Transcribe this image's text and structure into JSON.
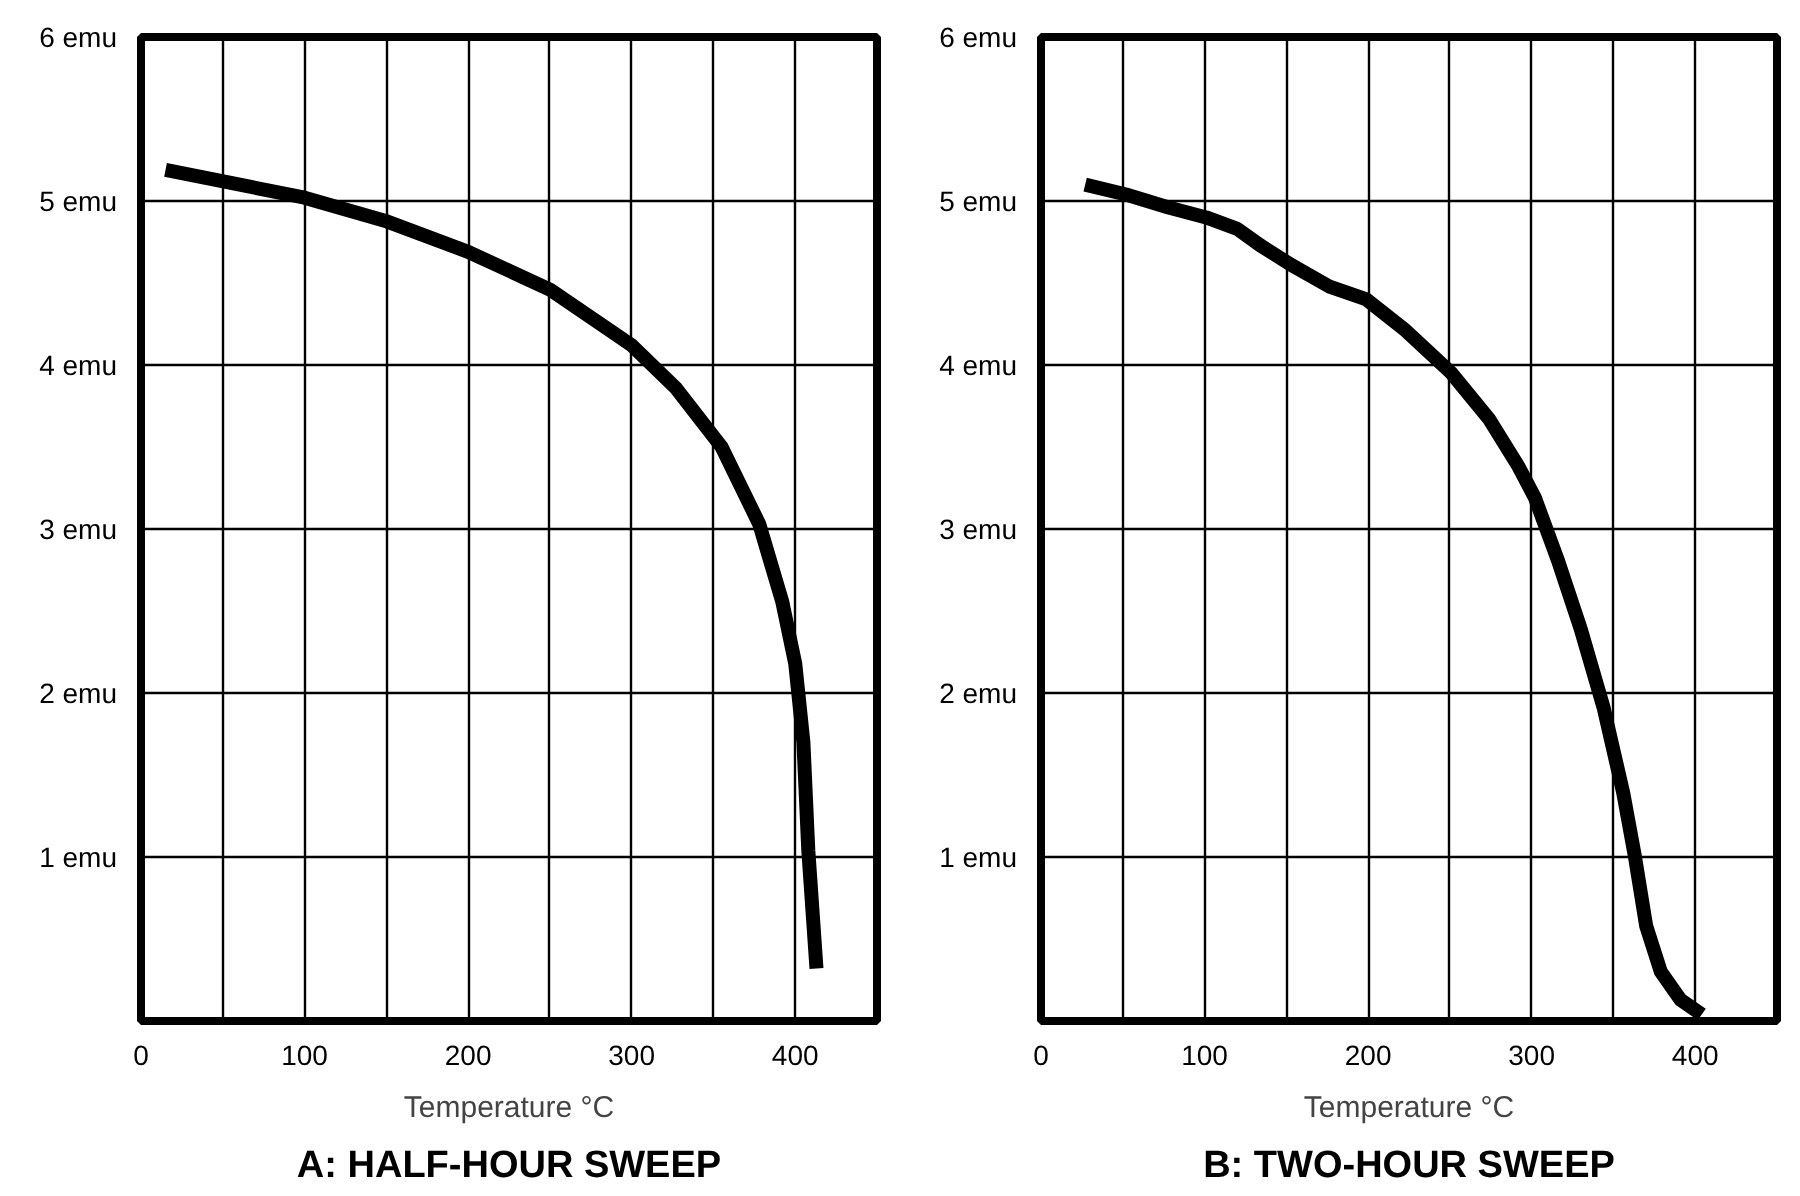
{
  "chart_data": [
    {
      "type": "line",
      "title": "A: HALF-HOUR SWEEP",
      "xlabel": "Temperature °C",
      "xlim": [
        0,
        450
      ],
      "ylim": [
        0,
        6
      ],
      "xticks": [
        0,
        {
          "value": 50,
          "label": null
        },
        100,
        {
          "value": 150,
          "label": null
        },
        200,
        {
          "value": 250,
          "label": null
        },
        300,
        {
          "value": 350,
          "label": null
        },
        400
      ],
      "yticks": [
        {
          "value": 1,
          "label": "1 emu"
        },
        {
          "value": 2,
          "label": "2 emu"
        },
        {
          "value": 3,
          "label": "3 emu"
        },
        {
          "value": 4,
          "label": "4 emu"
        },
        {
          "value": 5,
          "label": "5 emu"
        },
        {
          "value": 6,
          "label": "6 emu"
        }
      ],
      "grid": true,
      "series": [
        {
          "color": "#000000",
          "x": [
            15,
            100,
            149,
            200,
            250,
            300,
            327,
            355,
            378,
            392,
            400,
            405,
            408,
            413
          ],
          "values": [
            5.19,
            5.02,
            4.88,
            4.69,
            4.46,
            4.12,
            3.86,
            3.5,
            3.03,
            2.56,
            2.18,
            1.7,
            1.04,
            0.32
          ]
        }
      ]
    },
    {
      "type": "line",
      "title": "B: TWO-HOUR SWEEP",
      "xlabel": "Temperature °C",
      "xlim": [
        0,
        450
      ],
      "ylim": [
        0,
        6
      ],
      "xticks": [
        0,
        {
          "value": 50,
          "label": null
        },
        100,
        {
          "value": 150,
          "label": null
        },
        200,
        {
          "value": 250,
          "label": null
        },
        300,
        {
          "value": 350,
          "label": null
        },
        400
      ],
      "yticks": [
        {
          "value": 1,
          "label": "1 emu"
        },
        {
          "value": 2,
          "label": "2 emu"
        },
        {
          "value": 3,
          "label": "3 emu"
        },
        {
          "value": 4,
          "label": "4 emu"
        },
        {
          "value": 5,
          "label": "5 emu"
        },
        {
          "value": 6,
          "label": "6 emu"
        }
      ],
      "grid": true,
      "series": [
        {
          "color": "#000000",
          "x": [
            27,
            52,
            78,
            101,
            120,
            134,
            153,
            176,
            199,
            223,
            251,
            274,
            292,
            302,
            316,
            330,
            344,
            356,
            363,
            370,
            379,
            391,
            404
          ],
          "values": [
            5.1,
            5.04,
            4.96,
            4.9,
            4.83,
            4.73,
            4.61,
            4.48,
            4.4,
            4.21,
            3.95,
            3.67,
            3.38,
            3.19,
            2.81,
            2.39,
            1.91,
            1.39,
            1.01,
            0.58,
            0.3,
            0.13,
            0.04
          ]
        }
      ]
    }
  ]
}
